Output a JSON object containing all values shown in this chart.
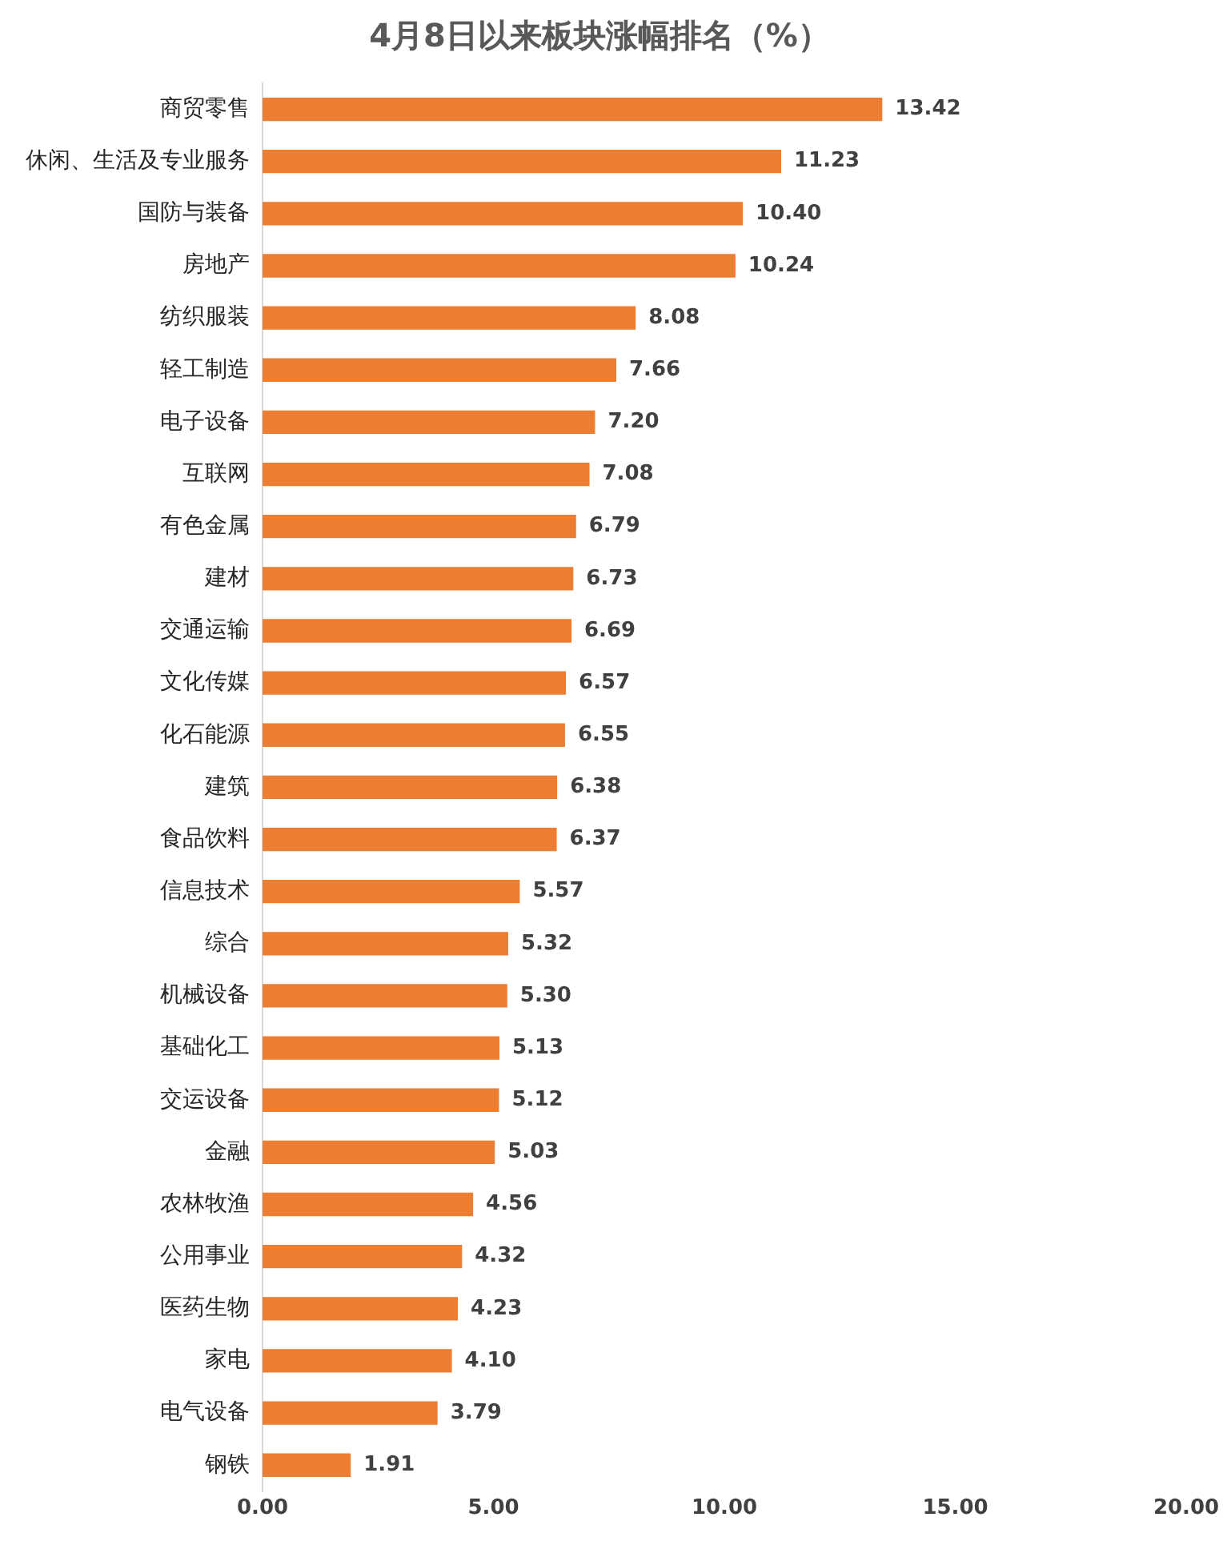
{
  "chart_data": {
    "type": "bar",
    "orientation": "horizontal",
    "title": "4月8日以来板块涨幅排名（%）",
    "categories": [
      "商贸零售",
      "休闲、生活及专业服务",
      "国防与装备",
      "房地产",
      "纺织服装",
      "轻工制造",
      "电子设备",
      "互联网",
      "有色金属",
      "建材",
      "交通运输",
      "文化传媒",
      "化石能源",
      "建筑",
      "食品饮料",
      "信息技术",
      "综合",
      "机械设备",
      "基础化工",
      "交运设备",
      "金融",
      "农林牧渔",
      "公用事业",
      "医药生物",
      "家电",
      "电气设备",
      "钢铁"
    ],
    "values": [
      13.42,
      11.23,
      10.4,
      10.24,
      8.08,
      7.66,
      7.2,
      7.08,
      6.79,
      6.73,
      6.69,
      6.57,
      6.55,
      6.38,
      6.37,
      5.57,
      5.32,
      5.3,
      5.13,
      5.12,
      5.03,
      4.56,
      4.32,
      4.23,
      4.1,
      3.79,
      1.91
    ],
    "color": "#ed7d31",
    "value_labels": [
      "13.42",
      "11.23",
      "10.40",
      "10.24",
      "8.08",
      "7.66",
      "7.20",
      "7.08",
      "6.79",
      "6.73",
      "6.69",
      "6.57",
      "6.55",
      "6.38",
      "6.37",
      "5.57",
      "5.32",
      "5.30",
      "5.13",
      "5.12",
      "5.03",
      "4.56",
      "4.32",
      "4.23",
      "4.10",
      "3.79",
      "1.91"
    ],
    "xlim": [
      0,
      20
    ],
    "xticks": [
      {
        "value": 0,
        "label": "0.00"
      },
      {
        "value": 5,
        "label": "5.00"
      },
      {
        "value": 10,
        "label": "10.00"
      },
      {
        "value": 15,
        "label": "15.00"
      },
      {
        "value": 20,
        "label": "20.00"
      }
    ],
    "grid": false,
    "legend": false
  }
}
